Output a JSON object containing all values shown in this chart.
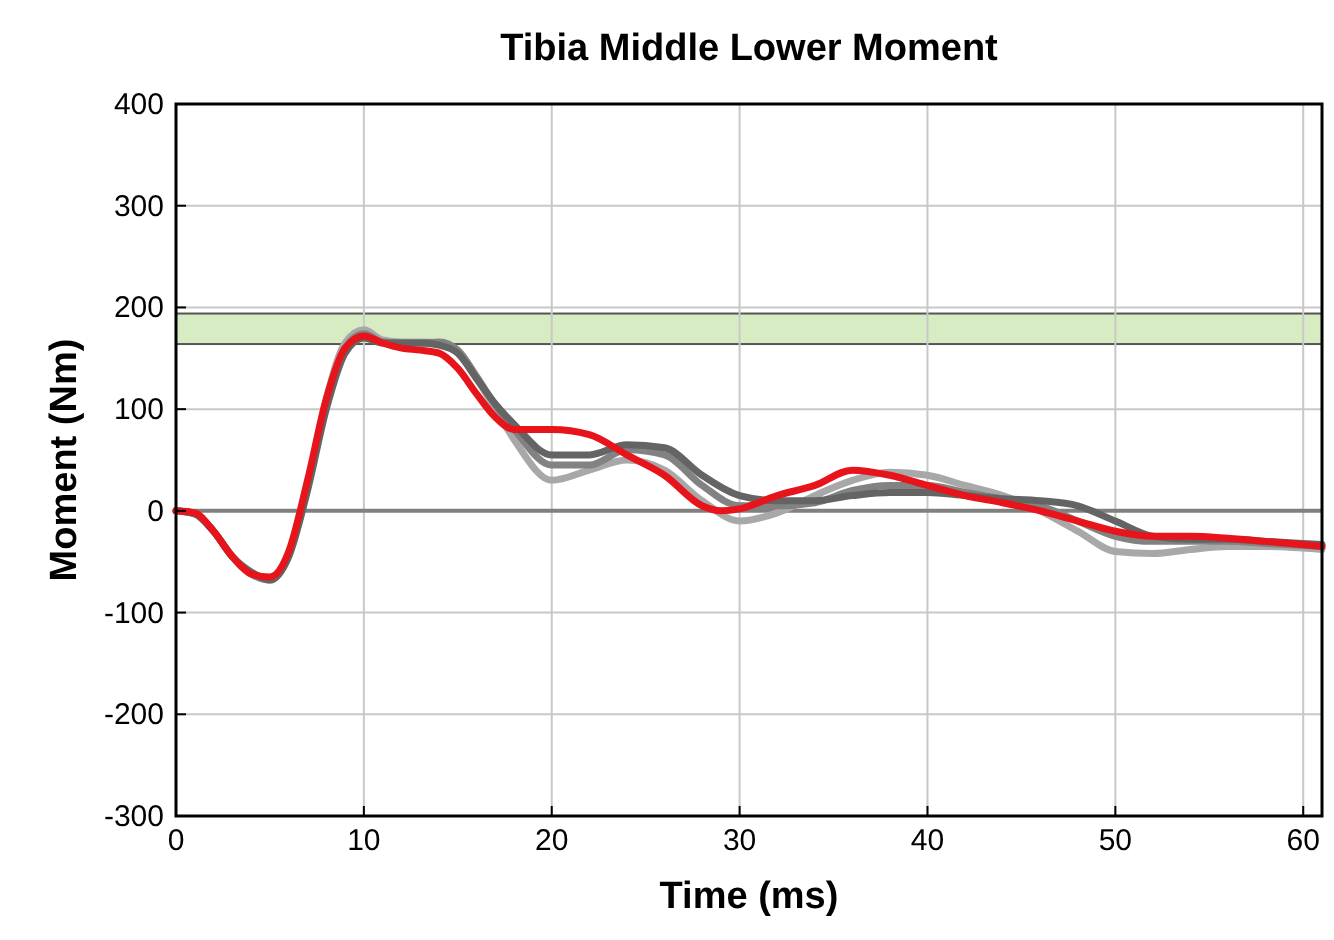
{
  "chart_data": {
    "type": "line",
    "title": "Tibia Middle Lower Moment",
    "xlabel": "Time (ms)",
    "ylabel": "Moment (Nm)",
    "xlim": [
      0,
      61
    ],
    "xticks": [
      0,
      10,
      20,
      30,
      40,
      50,
      60
    ],
    "ylim": [
      -300,
      400
    ],
    "yticks": [
      -300,
      -200,
      -100,
      0,
      100,
      200,
      300,
      400
    ],
    "grid": true,
    "ref_lines": [
      {
        "axis": "y",
        "value": 0,
        "color": "#808080"
      }
    ],
    "bands": [
      {
        "axis": "y",
        "from": 164,
        "to": 194,
        "color": "#d8ecc4"
      }
    ],
    "series": [
      {
        "color": "#a8a8a8",
        "x": [
          0,
          1,
          2,
          3,
          4,
          5,
          6,
          7,
          8,
          9,
          10,
          11,
          12,
          13,
          14,
          15,
          16,
          17,
          18,
          20,
          22,
          24,
          26,
          28,
          30,
          32,
          34,
          36,
          38,
          40,
          42,
          44,
          46,
          48,
          50,
          52,
          54,
          56,
          58,
          61
        ],
        "values": [
          0,
          -3,
          -20,
          -45,
          -62,
          -66,
          -42,
          25,
          110,
          165,
          178,
          168,
          166,
          166,
          165,
          155,
          130,
          100,
          70,
          30,
          40,
          50,
          40,
          10,
          -10,
          -2,
          15,
          30,
          38,
          35,
          25,
          15,
          0,
          -20,
          -40,
          -42,
          -38,
          -35,
          -35,
          -38
        ]
      },
      {
        "color": "#828282",
        "x": [
          0,
          1,
          2,
          3,
          4,
          5,
          6,
          7,
          8,
          9,
          10,
          11,
          12,
          13,
          14,
          15,
          16,
          17,
          18,
          20,
          22,
          24,
          26,
          28,
          30,
          32,
          34,
          36,
          38,
          40,
          42,
          44,
          46,
          48,
          50,
          52,
          54,
          56,
          58,
          61
        ],
        "values": [
          0,
          -3,
          -20,
          -45,
          -62,
          -68,
          -44,
          22,
          105,
          160,
          174,
          166,
          165,
          165,
          166,
          158,
          132,
          104,
          80,
          45,
          45,
          60,
          55,
          25,
          5,
          5,
          8,
          20,
          25,
          25,
          18,
          12,
          5,
          -10,
          -25,
          -30,
          -30,
          -30,
          -32,
          -35
        ]
      },
      {
        "color": "#646464",
        "x": [
          0,
          1,
          2,
          3,
          4,
          5,
          6,
          7,
          8,
          9,
          10,
          11,
          12,
          13,
          14,
          15,
          16,
          17,
          18,
          20,
          22,
          24,
          26,
          28,
          30,
          32,
          34,
          36,
          38,
          40,
          42,
          44,
          46,
          48,
          50,
          52,
          54,
          56,
          58,
          61
        ],
        "values": [
          0,
          -3,
          -20,
          -45,
          -60,
          -68,
          -45,
          20,
          100,
          155,
          170,
          165,
          165,
          165,
          163,
          155,
          130,
          105,
          85,
          55,
          55,
          65,
          62,
          35,
          15,
          10,
          10,
          15,
          18,
          18,
          15,
          12,
          10,
          5,
          -10,
          -25,
          -28,
          -28,
          -30,
          -33
        ]
      },
      {
        "color": "#e8141b",
        "x": [
          0,
          1,
          2,
          3,
          4,
          5,
          6,
          7,
          8,
          9,
          10,
          11,
          12,
          13,
          14,
          15,
          16,
          17,
          18,
          20,
          22,
          24,
          26,
          28,
          29,
          30,
          32,
          34,
          36,
          38,
          40,
          42,
          44,
          46,
          48,
          50,
          52,
          54,
          56,
          58,
          61
        ],
        "values": [
          0,
          -2,
          -20,
          -45,
          -62,
          -65,
          -40,
          30,
          110,
          160,
          172,
          165,
          160,
          158,
          155,
          140,
          115,
          92,
          80,
          80,
          75,
          55,
          35,
          5,
          0,
          2,
          15,
          25,
          40,
          35,
          25,
          15,
          8,
          0,
          -10,
          -20,
          -25,
          -25,
          -27,
          -30,
          -35
        ]
      }
    ]
  }
}
